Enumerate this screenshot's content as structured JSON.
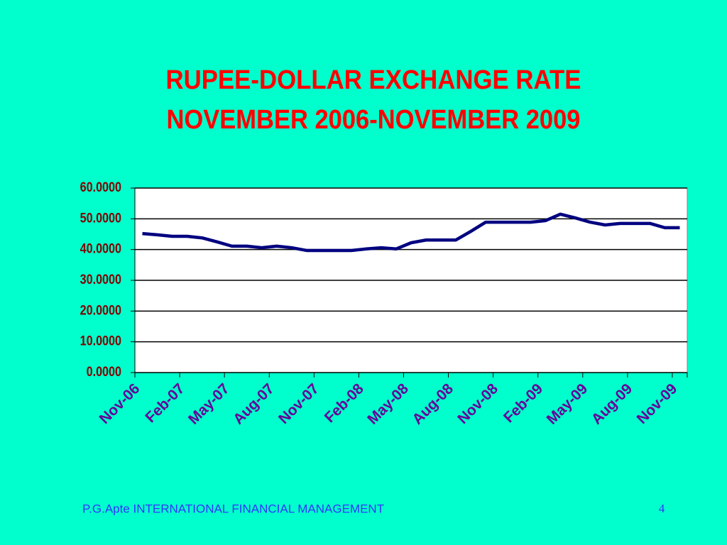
{
  "chart_data": {
    "type": "line",
    "title": "RUPEE-DOLLAR EXCHANGE RATE",
    "subtitle": "NOVEMBER 2006-NOVEMBER 2009",
    "categories": [
      "Nov-06",
      null,
      null,
      "Feb-07",
      null,
      null,
      "May-07",
      null,
      null,
      "Aug-07",
      null,
      null,
      "Nov-07",
      null,
      null,
      "Feb-08",
      null,
      null,
      "May-08",
      null,
      null,
      "Aug-08",
      null,
      null,
      "Nov-08",
      null,
      null,
      "Feb-09",
      null,
      null,
      "May-09",
      null,
      null,
      "Aug-09",
      null,
      null,
      "Nov-09"
    ],
    "series": [
      {
        "color": "#000080",
        "values": [
          45.2,
          44.8,
          44.3,
          44.3,
          43.8,
          42.5,
          41.1,
          41.1,
          40.6,
          41.1,
          40.6,
          39.7,
          39.7,
          39.7,
          39.7,
          40.2,
          40.6,
          40.2,
          42.2,
          43.1,
          43.1,
          43.1,
          45.9,
          48.9,
          48.9,
          48.9,
          48.9,
          49.4,
          51.5,
          50.3,
          48.9,
          48.0,
          48.5,
          48.5,
          48.5,
          47.1,
          47.1
        ]
      }
    ],
    "ylim": [
      0,
      60
    ],
    "yticks": [
      {
        "value": 0,
        "label": "0.0000"
      },
      {
        "value": 10,
        "label": "10.0000"
      },
      {
        "value": 20,
        "label": "20.0000"
      },
      {
        "value": 30,
        "label": "30.0000"
      },
      {
        "value": 40,
        "label": "40.0000"
      },
      {
        "value": 50,
        "label": "50.0000"
      },
      {
        "value": 60,
        "label": "60.0000"
      }
    ],
    "grid": true
  },
  "footer": {
    "text": "P.G.Apte INTERNATIONAL FINANCIAL MANAGEMENT",
    "page": "4"
  }
}
